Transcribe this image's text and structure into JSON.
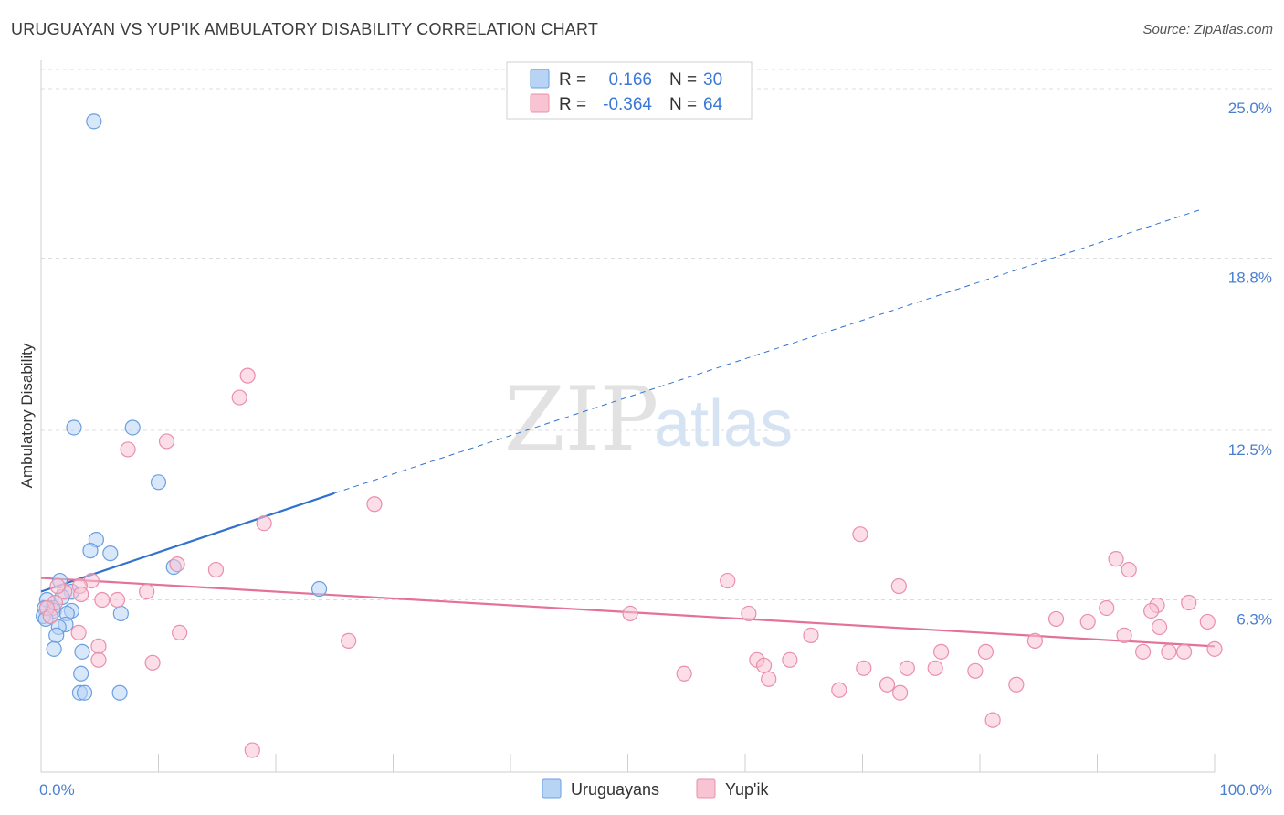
{
  "title": "URUGUAYAN VS YUP'IK AMBULATORY DISABILITY CORRELATION CHART",
  "source": "Source: ZipAtlas.com",
  "watermark": {
    "zip": "ZIP",
    "atlas": "atlas"
  },
  "colors": {
    "blue_fill": "#b8d4f5",
    "blue_stroke": "#6a9fe0",
    "blue_line": "#2f72d0",
    "pink_fill": "#f8c3d3",
    "pink_stroke": "#ea8fab",
    "pink_line": "#e3719a",
    "tick_text": "#4a7fd0",
    "grid": "#dcdcdc"
  },
  "legend": {
    "rows": [
      {
        "r_label": "R =",
        "r_value": "0.166",
        "n_label": "N =",
        "n_value": "30"
      },
      {
        "r_label": "R =",
        "r_value": "-0.364",
        "n_label": "N =",
        "n_value": "64"
      }
    ]
  },
  "chart_data": {
    "type": "scatter",
    "title": "URUGUAYAN VS YUP'IK AMBULATORY DISABILITY CORRELATION CHART",
    "xlabel": "",
    "ylabel": "Ambulatory Disability",
    "xlim": [
      0,
      100
    ],
    "ylim": [
      0,
      25.7
    ],
    "x_tick_labels": [
      "0.0%",
      "100.0%"
    ],
    "y_ticks": [
      6.3,
      12.5,
      18.8,
      25.0
    ],
    "y_tick_labels": [
      "6.3%",
      "12.5%",
      "18.8%",
      "25.0%"
    ],
    "grid": true,
    "legend_position": "top-center",
    "series": [
      {
        "name": "Uruguayans",
        "color": "#6a9fe0",
        "points": [
          [
            4.5,
            23.8
          ],
          [
            2.8,
            12.6
          ],
          [
            7.8,
            12.6
          ],
          [
            10.0,
            10.6
          ],
          [
            4.7,
            8.5
          ],
          [
            4.2,
            8.1
          ],
          [
            5.9,
            8.0
          ],
          [
            11.3,
            7.5
          ],
          [
            23.7,
            6.7
          ],
          [
            1.6,
            7.0
          ],
          [
            2.6,
            6.6
          ],
          [
            1.8,
            6.4
          ],
          [
            0.5,
            6.3
          ],
          [
            1.0,
            6.0
          ],
          [
            0.3,
            6.0
          ],
          [
            2.6,
            5.9
          ],
          [
            1.1,
            5.9
          ],
          [
            2.2,
            5.8
          ],
          [
            0.2,
            5.7
          ],
          [
            0.4,
            5.6
          ],
          [
            6.8,
            5.8
          ],
          [
            2.1,
            5.4
          ],
          [
            1.5,
            5.3
          ],
          [
            1.3,
            5.0
          ],
          [
            1.1,
            4.5
          ],
          [
            3.5,
            4.4
          ],
          [
            3.4,
            3.6
          ],
          [
            3.3,
            2.9
          ],
          [
            3.7,
            2.9
          ],
          [
            6.7,
            2.9
          ]
        ],
        "trend_solid": [
          [
            0,
            6.6
          ],
          [
            25,
            10.2
          ]
        ],
        "trend_dashed": [
          [
            25,
            10.2
          ],
          [
            99,
            20.6
          ]
        ]
      },
      {
        "name": "Yup'ik",
        "color": "#ea8fab",
        "points": [
          [
            17.6,
            14.5
          ],
          [
            16.9,
            13.7
          ],
          [
            10.7,
            12.1
          ],
          [
            7.4,
            11.8
          ],
          [
            28.4,
            9.8
          ],
          [
            19.0,
            9.1
          ],
          [
            69.8,
            8.7
          ],
          [
            91.6,
            7.8
          ],
          [
            92.7,
            7.4
          ],
          [
            14.9,
            7.4
          ],
          [
            11.6,
            7.6
          ],
          [
            58.5,
            7.0
          ],
          [
            73.1,
            6.8
          ],
          [
            4.3,
            7.0
          ],
          [
            3.3,
            6.8
          ],
          [
            2.0,
            6.6
          ],
          [
            1.4,
            6.8
          ],
          [
            3.4,
            6.5
          ],
          [
            5.2,
            6.3
          ],
          [
            6.5,
            6.3
          ],
          [
            9.0,
            6.6
          ],
          [
            1.2,
            6.2
          ],
          [
            0.5,
            6.0
          ],
          [
            0.8,
            5.7
          ],
          [
            50.2,
            5.8
          ],
          [
            60.3,
            5.8
          ],
          [
            90.8,
            6.0
          ],
          [
            95.1,
            6.1
          ],
          [
            97.8,
            6.2
          ],
          [
            94.6,
            5.9
          ],
          [
            86.5,
            5.6
          ],
          [
            89.2,
            5.5
          ],
          [
            95.3,
            5.3
          ],
          [
            99.4,
            5.5
          ],
          [
            3.2,
            5.1
          ],
          [
            11.8,
            5.1
          ],
          [
            65.6,
            5.0
          ],
          [
            92.3,
            5.0
          ],
          [
            26.2,
            4.8
          ],
          [
            4.9,
            4.6
          ],
          [
            84.7,
            4.8
          ],
          [
            76.7,
            4.4
          ],
          [
            80.5,
            4.4
          ],
          [
            96.1,
            4.4
          ],
          [
            97.4,
            4.4
          ],
          [
            100.0,
            4.5
          ],
          [
            93.9,
            4.4
          ],
          [
            61.0,
            4.1
          ],
          [
            63.8,
            4.1
          ],
          [
            61.6,
            3.9
          ],
          [
            4.9,
            4.1
          ],
          [
            9.5,
            4.0
          ],
          [
            70.1,
            3.8
          ],
          [
            73.8,
            3.8
          ],
          [
            76.2,
            3.8
          ],
          [
            79.6,
            3.7
          ],
          [
            54.8,
            3.6
          ],
          [
            62.0,
            3.4
          ],
          [
            72.1,
            3.2
          ],
          [
            83.1,
            3.2
          ],
          [
            68.0,
            3.0
          ],
          [
            73.2,
            2.9
          ],
          [
            81.1,
            1.9
          ],
          [
            18.0,
            0.8
          ]
        ],
        "trend_solid": [
          [
            0,
            7.1
          ],
          [
            100,
            4.6
          ]
        ]
      }
    ]
  }
}
